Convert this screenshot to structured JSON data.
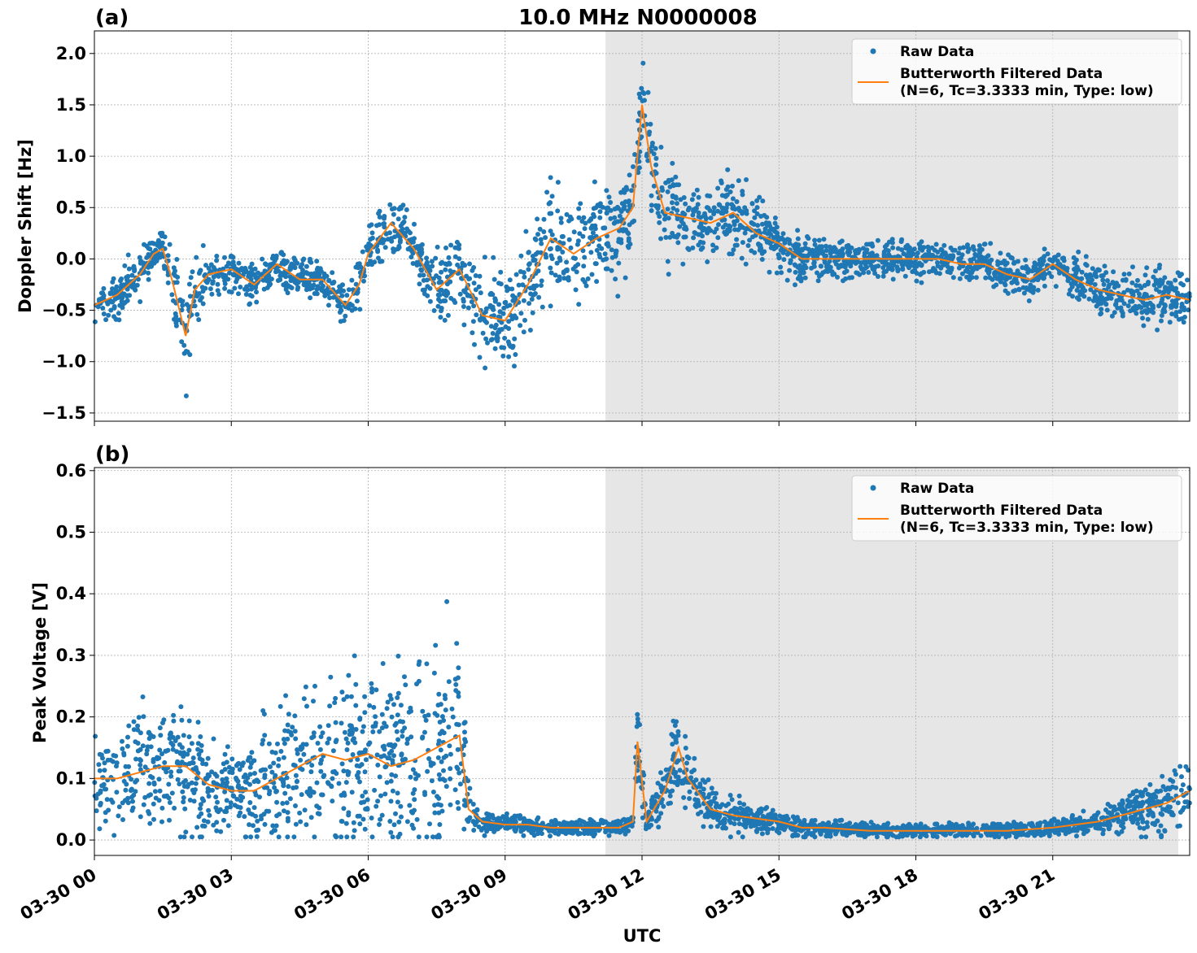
{
  "figure_title": "10.0 MHz N0000008",
  "xlabel": "UTC",
  "legend": {
    "raw": "Raw Data",
    "filtered_line1": "Butterworth Filtered Data",
    "filtered_line2": "(N=6, Tc=3.3333 min, Type: low)"
  },
  "colors": {
    "raw": "#1f77b4",
    "filtered": "#ff7f0e",
    "shade": "#e6e6e6",
    "grid": "#b0b0b0"
  },
  "chart_data": [
    {
      "type": "scatter",
      "panel_label": "(a)",
      "title": "10.0 MHz N0000008",
      "xlabel": "UTC",
      "ylabel": "Doppler Shift [Hz]",
      "xlim_hours": [
        0,
        24
      ],
      "ylim": [
        -1.58,
        2.22
      ],
      "yticks": [
        -1.5,
        -1.0,
        -0.5,
        0.0,
        0.5,
        1.0,
        1.5,
        2.0
      ],
      "ytick_labels": [
        "−1.5",
        "−1.0",
        "−0.5",
        "0.0",
        "0.5",
        "1.0",
        "1.5",
        "2.0"
      ],
      "xtick_labels": [],
      "shaded_span_hours": [
        11.2,
        23.75
      ],
      "grid": true,
      "legend_position": "upper right",
      "series": [
        {
          "name": "Butterworth Filtered Data (N=6, Tc=3.3333 min, Type: low)",
          "kind": "line",
          "x_hours": [
            0,
            0.5,
            1,
            1.3,
            1.5,
            1.7,
            2,
            2.2,
            2.5,
            3,
            3.5,
            4,
            4.5,
            5,
            5.5,
            5.8,
            6,
            6.5,
            7,
            7.5,
            8,
            8.5,
            9,
            9.5,
            10,
            10.5,
            11,
            11.5,
            11.8,
            12,
            12.2,
            12.5,
            13,
            13.5,
            14,
            14.5,
            15,
            15.5,
            16,
            16.5,
            17,
            17.5,
            18,
            18.5,
            19,
            19.5,
            20,
            20.5,
            21,
            21.5,
            22,
            22.5,
            23,
            23.5,
            24
          ],
          "y": [
            -0.45,
            -0.35,
            -0.15,
            0.05,
            0.1,
            -0.2,
            -0.75,
            -0.3,
            -0.15,
            -0.1,
            -0.25,
            -0.05,
            -0.2,
            -0.2,
            -0.45,
            -0.25,
            0.05,
            0.35,
            0.1,
            -0.3,
            -0.1,
            -0.55,
            -0.6,
            -0.25,
            0.2,
            0.05,
            0.2,
            0.3,
            0.5,
            1.5,
            0.9,
            0.45,
            0.4,
            0.35,
            0.45,
            0.25,
            0.15,
            0.0,
            0.0,
            0.0,
            0.0,
            0.0,
            0.0,
            0.0,
            -0.05,
            -0.05,
            -0.15,
            -0.2,
            -0.05,
            -0.2,
            -0.3,
            -0.35,
            -0.4,
            -0.35,
            -0.4
          ]
        },
        {
          "name": "Raw Data",
          "kind": "scatter",
          "note": "dense raw points scattered around the filtered curve",
          "x_hours": [
            0,
            0.5,
            1,
            1.3,
            1.5,
            1.7,
            2,
            2.2,
            2.5,
            3,
            3.5,
            4,
            4.5,
            5,
            5.5,
            5.8,
            6,
            6.5,
            7,
            7.5,
            8,
            8.5,
            9,
            9.5,
            10,
            10.5,
            11,
            11.5,
            11.8,
            12,
            12.2,
            12.5,
            13,
            13.5,
            14,
            14.5,
            15,
            15.5,
            16,
            16.5,
            17,
            17.5,
            18,
            18.5,
            19,
            19.5,
            20,
            20.5,
            21,
            21.5,
            22,
            22.5,
            23,
            23.5,
            24
          ],
          "y": [
            -0.45,
            -0.35,
            -0.15,
            0.05,
            0.1,
            -0.2,
            -0.75,
            -0.3,
            -0.15,
            -0.1,
            -0.25,
            -0.05,
            -0.2,
            -0.2,
            -0.45,
            -0.25,
            0.05,
            0.35,
            0.1,
            -0.3,
            -0.1,
            -0.55,
            -0.6,
            -0.25,
            0.2,
            0.05,
            0.2,
            0.3,
            0.5,
            1.5,
            0.9,
            0.45,
            0.4,
            0.35,
            0.45,
            0.25,
            0.15,
            0.0,
            0.0,
            0.0,
            0.0,
            0.0,
            0.0,
            0.0,
            -0.05,
            -0.05,
            -0.15,
            -0.2,
            -0.05,
            -0.2,
            -0.3,
            -0.35,
            -0.4,
            -0.35,
            -0.4
          ],
          "spread": [
            0.15,
            0.2,
            0.2,
            0.15,
            0.15,
            0.25,
            0.4,
            0.35,
            0.2,
            0.15,
            0.15,
            0.15,
            0.15,
            0.15,
            0.15,
            0.2,
            0.25,
            0.25,
            0.2,
            0.3,
            0.35,
            0.4,
            0.4,
            0.4,
            0.45,
            0.45,
            0.4,
            0.4,
            0.45,
            0.35,
            0.35,
            0.35,
            0.3,
            0.25,
            0.3,
            0.25,
            0.2,
            0.2,
            0.15,
            0.15,
            0.15,
            0.15,
            0.15,
            0.15,
            0.15,
            0.15,
            0.15,
            0.15,
            0.15,
            0.2,
            0.2,
            0.2,
            0.2,
            0.2,
            0.2
          ]
        }
      ]
    },
    {
      "type": "scatter",
      "panel_label": "(b)",
      "xlabel": "UTC",
      "ylabel": "Peak Voltage [V]",
      "xlim_hours": [
        0,
        24
      ],
      "ylim": [
        -0.025,
        0.605
      ],
      "yticks": [
        0.0,
        0.1,
        0.2,
        0.3,
        0.4,
        0.5,
        0.6
      ],
      "ytick_labels": [
        "0.0",
        "0.1",
        "0.2",
        "0.3",
        "0.4",
        "0.5",
        "0.6"
      ],
      "xticks_hours": [
        0,
        3,
        6,
        9,
        12,
        15,
        18,
        21
      ],
      "xtick_labels": [
        "03-30 00",
        "03-30 03",
        "03-30 06",
        "03-30 09",
        "03-30 12",
        "03-30 15",
        "03-30 18",
        "03-30 21"
      ],
      "shaded_span_hours": [
        11.2,
        23.75
      ],
      "grid": true,
      "legend_position": "upper right",
      "series": [
        {
          "name": "Butterworth Filtered Data (N=6, Tc=3.3333 min, Type: low)",
          "kind": "line",
          "x_hours": [
            0,
            0.5,
            1,
            1.5,
            2,
            2.5,
            3,
            3.5,
            4,
            4.5,
            5,
            5.5,
            6,
            6.5,
            7,
            7.5,
            8,
            8.2,
            8.5,
            9,
            9.5,
            10,
            10.5,
            11,
            11.5,
            11.8,
            11.9,
            12.1,
            12.5,
            12.8,
            13,
            13.5,
            14,
            14.5,
            15,
            15.5,
            16,
            17,
            18,
            19,
            20,
            21,
            22,
            23,
            23.5,
            24
          ],
          "y": [
            0.1,
            0.1,
            0.11,
            0.12,
            0.12,
            0.09,
            0.08,
            0.08,
            0.1,
            0.12,
            0.14,
            0.13,
            0.14,
            0.12,
            0.13,
            0.15,
            0.17,
            0.05,
            0.03,
            0.025,
            0.025,
            0.02,
            0.02,
            0.02,
            0.02,
            0.03,
            0.16,
            0.03,
            0.08,
            0.15,
            0.1,
            0.05,
            0.04,
            0.035,
            0.03,
            0.02,
            0.02,
            0.015,
            0.015,
            0.015,
            0.015,
            0.02,
            0.03,
            0.05,
            0.06,
            0.08
          ]
        },
        {
          "name": "Raw Data",
          "kind": "scatter",
          "note": "dense raw points scattered around the filtered curve",
          "x_hours": [
            0,
            0.5,
            1,
            1.5,
            2,
            2.5,
            3,
            3.5,
            4,
            4.5,
            5,
            5.5,
            6,
            6.5,
            7,
            7.5,
            8,
            8.2,
            8.5,
            9,
            9.5,
            10,
            10.5,
            11,
            11.5,
            11.8,
            11.9,
            12.1,
            12.5,
            12.8,
            13,
            13.5,
            14,
            14.5,
            15,
            15.5,
            16,
            17,
            18,
            19,
            20,
            21,
            22,
            23,
            23.5,
            24
          ],
          "y": [
            0.1,
            0.1,
            0.11,
            0.12,
            0.12,
            0.09,
            0.08,
            0.08,
            0.1,
            0.12,
            0.14,
            0.13,
            0.14,
            0.12,
            0.13,
            0.15,
            0.17,
            0.05,
            0.03,
            0.025,
            0.025,
            0.02,
            0.02,
            0.02,
            0.02,
            0.03,
            0.16,
            0.03,
            0.08,
            0.15,
            0.1,
            0.05,
            0.04,
            0.035,
            0.03,
            0.02,
            0.02,
            0.015,
            0.015,
            0.015,
            0.015,
            0.02,
            0.03,
            0.05,
            0.06,
            0.08
          ],
          "spread": [
            0.06,
            0.07,
            0.08,
            0.08,
            0.08,
            0.06,
            0.06,
            0.07,
            0.08,
            0.1,
            0.12,
            0.12,
            0.13,
            0.12,
            0.12,
            0.14,
            0.15,
            0.03,
            0.015,
            0.012,
            0.012,
            0.01,
            0.01,
            0.01,
            0.01,
            0.01,
            0.06,
            0.02,
            0.04,
            0.06,
            0.05,
            0.03,
            0.025,
            0.02,
            0.015,
            0.012,
            0.01,
            0.01,
            0.01,
            0.01,
            0.01,
            0.01,
            0.015,
            0.03,
            0.04,
            0.05
          ]
        }
      ]
    }
  ]
}
